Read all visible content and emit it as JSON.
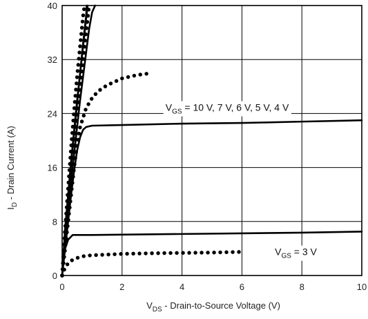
{
  "chart_data": {
    "type": "line",
    "xlabel": {
      "main": "V",
      "sub": "DS",
      "rest": " - Drain-to-Source Voltage (V)"
    },
    "ylabel": {
      "main": "I",
      "sub": "D",
      "rest": " - Drain Current (A)"
    },
    "xlim": [
      0,
      10
    ],
    "ylim": [
      0,
      40
    ],
    "xticks": [
      0,
      2,
      4,
      6,
      8,
      10
    ],
    "yticks": [
      0,
      8,
      16,
      24,
      32,
      40
    ],
    "grid": true,
    "annotations": [
      {
        "main": "V",
        "sub": "GS",
        "rest": " = 10 V, 7 V, 6 V, 5 V, 4 V",
        "at": [
          3.45,
          24.4
        ]
      },
      {
        "main": "V",
        "sub": "GS",
        "rest": " = 3 V",
        "at": [
          7.1,
          3.0
        ]
      }
    ],
    "series": [
      {
        "style": "solid",
        "x": [
          0,
          0.1,
          0.2,
          0.3,
          0.4,
          0.5,
          0.6,
          0.7,
          0.8,
          0.9,
          1.0,
          1.1
        ],
        "y": [
          0,
          6,
          10,
          14,
          18,
          22,
          26,
          29.5,
          33,
          36.5,
          39,
          40
        ]
      },
      {
        "style": "solid",
        "x": [
          0,
          0.1,
          0.2,
          0.3,
          0.4,
          0.5,
          0.6,
          0.7,
          0.8,
          0.85
        ],
        "y": [
          0,
          7,
          12,
          17,
          21.5,
          26,
          30,
          34,
          38,
          40
        ]
      },
      {
        "style": "solid",
        "x": [
          0,
          0.1,
          0.2,
          0.3,
          0.4,
          0.5,
          0.6,
          0.7,
          0.8,
          0.82
        ],
        "y": [
          0,
          6.5,
          11.5,
          16.5,
          21,
          25.5,
          30,
          34.5,
          38.5,
          40
        ]
      },
      {
        "style": "dotted",
        "x": [
          0,
          0.1,
          0.2,
          0.3,
          0.4,
          0.5,
          0.6,
          0.7,
          0.75
        ],
        "y": [
          0,
          7,
          13,
          19,
          24.5,
          29.5,
          34,
          38.5,
          40
        ]
      },
      {
        "style": "dotted",
        "x": [
          0,
          0.1,
          0.2,
          0.3,
          0.4,
          0.5,
          0.6,
          0.7,
          0.8,
          0.9
        ],
        "y": [
          0,
          5,
          10,
          14.5,
          19,
          23.5,
          28,
          32,
          36,
          40
        ]
      },
      {
        "style": "dotted",
        "x": [
          0,
          0.1,
          0.2,
          0.3,
          0.4,
          0.5,
          0.6,
          0.8,
          1.0,
          1.2,
          1.5,
          2.0,
          2.5,
          3.0
        ],
        "y": [
          0,
          4,
          8,
          12,
          16,
          19.5,
          22,
          24.8,
          26.3,
          27.3,
          28.2,
          29.2,
          29.7,
          30.0
        ]
      },
      {
        "style": "solid",
        "x": [
          0,
          0.1,
          0.2,
          0.3,
          0.4,
          0.5,
          0.6,
          0.7,
          0.8,
          1.0,
          2.0,
          4.0,
          6.0,
          8.0,
          10.0
        ],
        "y": [
          0,
          4,
          8,
          12,
          15.5,
          18.5,
          20.5,
          21.6,
          22.0,
          22.2,
          22.3,
          22.5,
          22.6,
          22.8,
          23.0
        ]
      },
      {
        "style": "solid",
        "x": [
          0,
          0.05,
          0.1,
          0.2,
          0.35,
          1.0,
          2.0,
          4.0,
          6.0,
          8.0,
          10.0
        ],
        "y": [
          0,
          2.5,
          4.0,
          5.3,
          6.0,
          6.0,
          6.05,
          6.15,
          6.25,
          6.35,
          6.5
        ]
      },
      {
        "style": "dotted",
        "x": [
          0,
          0.1,
          0.2,
          0.3,
          0.5,
          0.75,
          1.0,
          1.5,
          2.0,
          3.0,
          4.0,
          5.0,
          6.0
        ],
        "y": [
          0,
          1.2,
          1.8,
          2.2,
          2.6,
          2.9,
          3.0,
          3.1,
          3.2,
          3.3,
          3.35,
          3.4,
          3.5
        ]
      }
    ]
  }
}
